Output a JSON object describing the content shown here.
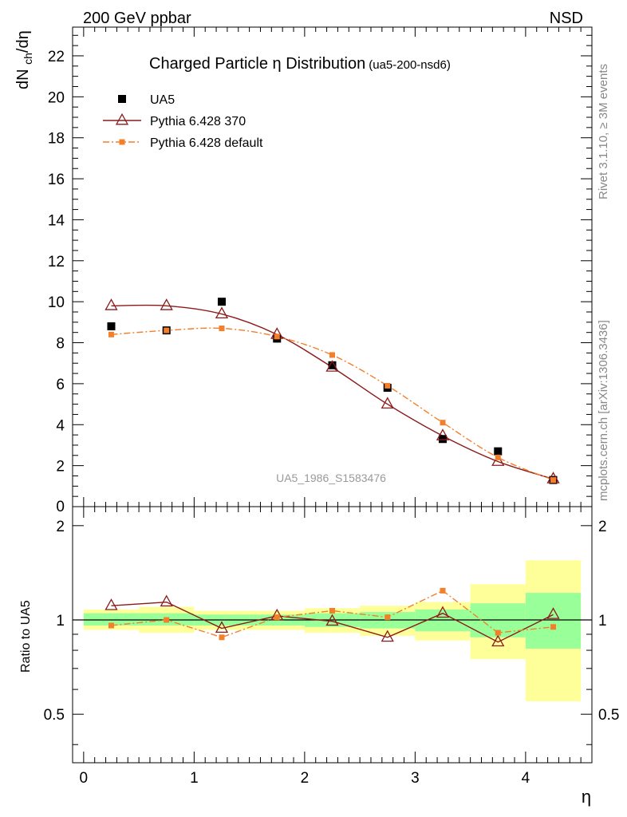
{
  "header": {
    "energy_label": "200 GeV ppbar",
    "process_label": "NSD"
  },
  "side_labels": {
    "rivet": "Rivet 3.1.10, ≥ 3M events",
    "source": "mcplots.cern.ch [arXiv:1306.3436]"
  },
  "chart_data": [
    {
      "type": "scatter",
      "panel": "main",
      "title": "Charged Particle η Distribution",
      "subtitle": "(ua5-200-nsd6)",
      "analysis_label": "UA5_1986_S1583476",
      "ylabel": "dN_ch/dη",
      "xlim": [
        -0.1,
        4.6
      ],
      "ylim": [
        0,
        23.4
      ],
      "yticks": [
        2,
        4,
        6,
        8,
        10,
        12,
        14,
        16,
        18,
        20,
        22
      ],
      "ytick_labels": [
        "2",
        "4",
        "6",
        "8",
        "10",
        "12",
        "14",
        "16",
        "18",
        "20",
        "22"
      ],
      "ybottom_label": "0",
      "legend_position": "top-left",
      "x": [
        0.25,
        0.75,
        1.25,
        1.75,
        2.25,
        2.75,
        3.25,
        3.75,
        4.25
      ],
      "series": [
        {
          "name": "UA5",
          "marker": "square",
          "color": "#000000",
          "values": [
            8.8,
            8.6,
            10.0,
            8.2,
            6.9,
            5.8,
            3.3,
            2.7,
            1.3
          ]
        },
        {
          "name": "Pythia 6.428 370",
          "marker": "triangle-open",
          "line": "solid",
          "color": "#8b1a1a",
          "values": [
            9.8,
            9.8,
            9.4,
            8.4,
            6.8,
            5.0,
            3.45,
            2.2,
            1.35
          ]
        },
        {
          "name": "Pythia 6.428 default",
          "marker": "square-small",
          "line": "dash-dot",
          "color": "#f47f2a",
          "values": [
            8.4,
            8.6,
            8.7,
            8.3,
            7.4,
            5.9,
            4.1,
            2.4,
            1.3
          ]
        }
      ]
    },
    {
      "type": "line",
      "panel": "ratio",
      "ylabel": "Ratio to UA5",
      "xlabel": "η",
      "xlim": [
        -0.1,
        4.6
      ],
      "ylim": [
        0.35,
        2.3
      ],
      "yticks": [
        0.5,
        1,
        2
      ],
      "ytick_labels": [
        "0.5",
        "1",
        "2"
      ],
      "xticks": [
        0,
        1,
        2,
        3,
        4
      ],
      "xtick_labels": [
        "0",
        "1",
        "2",
        "3",
        "4"
      ],
      "reference_line": 1,
      "x": [
        0.25,
        0.75,
        1.25,
        1.75,
        2.25,
        2.75,
        3.25,
        3.75,
        4.25
      ],
      "uncertainty_bins": [
        {
          "x0": 0.0,
          "x1": 0.5,
          "stat": [
            0.96,
            1.05
          ],
          "total": [
            0.93,
            1.08
          ]
        },
        {
          "x0": 0.5,
          "x1": 1.0,
          "stat": [
            0.96,
            1.05
          ],
          "total": [
            0.91,
            1.1
          ]
        },
        {
          "x0": 1.0,
          "x1": 1.5,
          "stat": [
            0.96,
            1.04
          ],
          "total": [
            0.93,
            1.07
          ]
        },
        {
          "x0": 1.5,
          "x1": 2.0,
          "stat": [
            0.96,
            1.04
          ],
          "total": [
            0.93,
            1.07
          ]
        },
        {
          "x0": 2.0,
          "x1": 2.5,
          "stat": [
            0.95,
            1.05
          ],
          "total": [
            0.91,
            1.09
          ]
        },
        {
          "x0": 2.5,
          "x1": 3.0,
          "stat": [
            0.94,
            1.06
          ],
          "total": [
            0.89,
            1.11
          ]
        },
        {
          "x0": 3.0,
          "x1": 3.5,
          "stat": [
            0.92,
            1.08
          ],
          "total": [
            0.86,
            1.14
          ]
        },
        {
          "x0": 3.5,
          "x1": 4.0,
          "stat": [
            0.88,
            1.13
          ],
          "total": [
            0.75,
            1.3
          ]
        },
        {
          "x0": 4.0,
          "x1": 4.5,
          "stat": [
            0.81,
            1.22
          ],
          "total": [
            0.55,
            1.55
          ]
        }
      ],
      "band_colors": {
        "stat": "#99ff99",
        "total": "#ffff99"
      },
      "series": [
        {
          "name": "Pythia 6.428 370",
          "marker": "triangle-open",
          "line": "solid",
          "color": "#8b1a1a",
          "values": [
            1.11,
            1.14,
            0.94,
            1.03,
            0.99,
            0.88,
            1.05,
            0.85,
            1.04
          ]
        },
        {
          "name": "Pythia 6.428 default",
          "marker": "square-small",
          "line": "dash-dot",
          "color": "#f47f2a",
          "values": [
            0.96,
            1.0,
            0.88,
            1.02,
            1.07,
            1.02,
            1.24,
            0.91,
            0.95
          ]
        }
      ]
    }
  ]
}
